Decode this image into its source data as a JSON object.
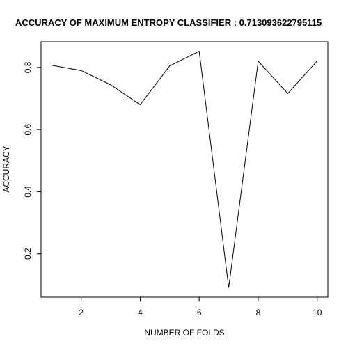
{
  "chart_data": {
    "type": "line",
    "title": "ACCURACY OF MAXIMUM ENTROPY CLASSIFIER :  0.713093622795115",
    "xlabel": "NUMBER OF FOLDS",
    "ylabel": "ACCURACY",
    "x": [
      1,
      2,
      3,
      4,
      5,
      6,
      7,
      8,
      9,
      10
    ],
    "series": [
      {
        "values": [
          0.807,
          0.79,
          0.744,
          0.68,
          0.805,
          0.852,
          0.091,
          0.82,
          0.716,
          0.821
        ]
      }
    ],
    "xlim": [
      0.64,
      10.36
    ],
    "ylim": [
      0.0604,
      0.8826
    ],
    "x_ticks": [
      "2",
      "4",
      "6",
      "8",
      "10"
    ],
    "y_ticks": [
      "0.2",
      "0.4",
      "0.6",
      "0.8"
    ],
    "grid": false,
    "line_color": "#000000"
  }
}
